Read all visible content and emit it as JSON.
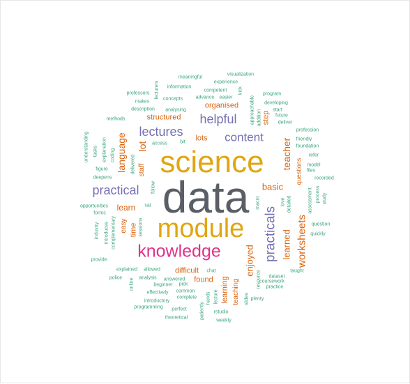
{
  "colors": {
    "gray": "#5a5f66",
    "gold": "#e0a612",
    "pink": "#e0338a",
    "purple": "#7570b3",
    "orange": "#d9630f",
    "teal": "#3aa57c"
  },
  "words": [
    {
      "text": "data",
      "color": "gray"
    },
    {
      "text": "science",
      "color": "gold"
    },
    {
      "text": "module",
      "color": "gold"
    },
    {
      "text": "knowledge",
      "color": "pink"
    },
    {
      "text": "practicals",
      "color": "purple"
    },
    {
      "text": "content",
      "color": "purple"
    },
    {
      "text": "helpful",
      "color": "purple"
    },
    {
      "text": "lectures",
      "color": "purple"
    },
    {
      "text": "practical",
      "color": "purple"
    },
    {
      "text": "worksheets",
      "color": "orange"
    },
    {
      "text": "learned",
      "color": "orange"
    },
    {
      "text": "enjoyed",
      "color": "orange"
    },
    {
      "text": "teacher",
      "color": "orange"
    },
    {
      "text": "language",
      "color": "orange"
    },
    {
      "text": "basic",
      "color": "orange"
    },
    {
      "text": "learn",
      "color": "orange"
    },
    {
      "text": "lot",
      "color": "orange"
    },
    {
      "text": "organised",
      "color": "orange"
    },
    {
      "text": "structured",
      "color": "orange"
    },
    {
      "text": "difficult",
      "color": "orange"
    },
    {
      "text": "found",
      "color": "orange"
    },
    {
      "text": "lots",
      "color": "orange"
    },
    {
      "text": "staff",
      "color": "orange"
    },
    {
      "text": "time",
      "color": "orange"
    },
    {
      "text": "easy",
      "color": "orange"
    },
    {
      "text": "step",
      "color": "orange"
    },
    {
      "text": "questions",
      "color": "orange"
    },
    {
      "text": "learning",
      "color": "orange"
    },
    {
      "text": "teaching",
      "color": "orange"
    },
    {
      "text": "meaningful",
      "color": "teal"
    },
    {
      "text": "visualization",
      "color": "teal"
    },
    {
      "text": "experience",
      "color": "teal"
    },
    {
      "text": "information",
      "color": "teal"
    },
    {
      "text": "competent",
      "color": "teal"
    },
    {
      "text": "kick",
      "color": "teal"
    },
    {
      "text": "professors",
      "color": "teal"
    },
    {
      "text": "lecturers",
      "color": "teal"
    },
    {
      "text": "advance",
      "color": "teal"
    },
    {
      "text": "easier",
      "color": "teal"
    },
    {
      "text": "program",
      "color": "teal"
    },
    {
      "text": "makes",
      "color": "teal"
    },
    {
      "text": "concepts",
      "color": "teal"
    },
    {
      "text": "approachable",
      "color": "teal"
    },
    {
      "text": "developing",
      "color": "teal"
    },
    {
      "text": "description",
      "color": "teal"
    },
    {
      "text": "analysing",
      "color": "teal"
    },
    {
      "text": "start",
      "color": "teal"
    },
    {
      "text": "addition",
      "color": "teal"
    },
    {
      "text": "future",
      "color": "teal"
    },
    {
      "text": "methods",
      "color": "teal"
    },
    {
      "text": "deliver",
      "color": "teal"
    },
    {
      "text": "profession",
      "color": "teal"
    },
    {
      "text": "understanding",
      "color": "teal"
    },
    {
      "text": "coding",
      "color": "teal"
    },
    {
      "text": "explanation",
      "color": "teal"
    },
    {
      "text": "tasks",
      "color": "teal"
    },
    {
      "text": "access",
      "color": "teal"
    },
    {
      "text": "bit",
      "color": "teal"
    },
    {
      "text": "friendly",
      "color": "teal"
    },
    {
      "text": "foundation",
      "color": "teal"
    },
    {
      "text": "refer",
      "color": "teal"
    },
    {
      "text": "figure",
      "color": "teal"
    },
    {
      "text": "delivered",
      "color": "teal"
    },
    {
      "text": "model",
      "color": "teal"
    },
    {
      "text": "files",
      "color": "teal"
    },
    {
      "text": "deepens",
      "color": "teal"
    },
    {
      "text": "recorded",
      "color": "teal"
    },
    {
      "text": "follow",
      "color": "teal"
    },
    {
      "text": "sat",
      "color": "teal"
    },
    {
      "text": "macro",
      "color": "teal"
    },
    {
      "text": "love",
      "color": "teal"
    },
    {
      "text": "detailed",
      "color": "teal"
    },
    {
      "text": "assessment",
      "color": "teal"
    },
    {
      "text": "process",
      "color": "teal"
    },
    {
      "text": "study",
      "color": "teal"
    },
    {
      "text": "opportunities",
      "color": "teal"
    },
    {
      "text": "forms",
      "color": "teal"
    },
    {
      "text": "industry",
      "color": "teal"
    },
    {
      "text": "complementary",
      "color": "teal"
    },
    {
      "text": "introduces",
      "color": "teal"
    },
    {
      "text": "sessions",
      "color": "teal"
    },
    {
      "text": "question",
      "color": "teal"
    },
    {
      "text": "quickly",
      "color": "teal"
    },
    {
      "text": "provide",
      "color": "teal"
    },
    {
      "text": "explained",
      "color": "teal"
    },
    {
      "text": "allowed",
      "color": "teal"
    },
    {
      "text": "chat",
      "color": "teal"
    },
    {
      "text": "taught",
      "color": "teal"
    },
    {
      "text": "police",
      "color": "teal"
    },
    {
      "text": "online",
      "color": "teal"
    },
    {
      "text": "analysis",
      "color": "teal"
    },
    {
      "text": "answered",
      "color": "teal"
    },
    {
      "text": "beginner",
      "color": "teal"
    },
    {
      "text": "pick",
      "color": "teal"
    },
    {
      "text": "resource",
      "color": "teal"
    },
    {
      "text": "dataset",
      "color": "teal"
    },
    {
      "text": "coursework",
      "color": "teal"
    },
    {
      "text": "practice",
      "color": "teal"
    },
    {
      "text": "effectively",
      "color": "teal"
    },
    {
      "text": "common",
      "color": "teal"
    },
    {
      "text": "complete",
      "color": "teal"
    },
    {
      "text": "hands",
      "color": "teal"
    },
    {
      "text": "lecture",
      "color": "teal"
    },
    {
      "text": "slides",
      "color": "teal"
    },
    {
      "text": "plenty",
      "color": "teal"
    },
    {
      "text": "introductory",
      "color": "teal"
    },
    {
      "text": "programming",
      "color": "teal"
    },
    {
      "text": "perfect",
      "color": "teal"
    },
    {
      "text": "rstudio",
      "color": "teal"
    },
    {
      "text": "theoretical",
      "color": "teal"
    },
    {
      "text": "patiently",
      "color": "teal"
    },
    {
      "text": "weekly",
      "color": "teal"
    }
  ]
}
